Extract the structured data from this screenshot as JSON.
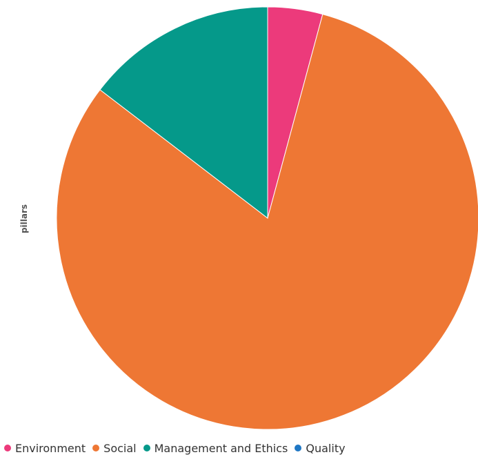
{
  "chart_data": {
    "type": "pie",
    "title": "",
    "ylabel": "pillars",
    "legend_position": "bottom",
    "slices": [
      {
        "label": "Environment",
        "value": 4.2,
        "color": "#ec3a7b"
      },
      {
        "label": "Social",
        "value": 81.2,
        "color": "#ee7734"
      },
      {
        "label": "Management and Ethics",
        "value": 14.6,
        "color": "#05998a"
      },
      {
        "label": "Quality",
        "value": 0,
        "color": "#1f77c4"
      }
    ]
  },
  "legend": {
    "items": [
      {
        "label": "Environment",
        "color": "#ec3a7b"
      },
      {
        "label": "Social",
        "color": "#ee7734"
      },
      {
        "label": "Management and Ethics",
        "color": "#05998a"
      },
      {
        "label": "Quality",
        "color": "#1f77c4"
      }
    ]
  }
}
